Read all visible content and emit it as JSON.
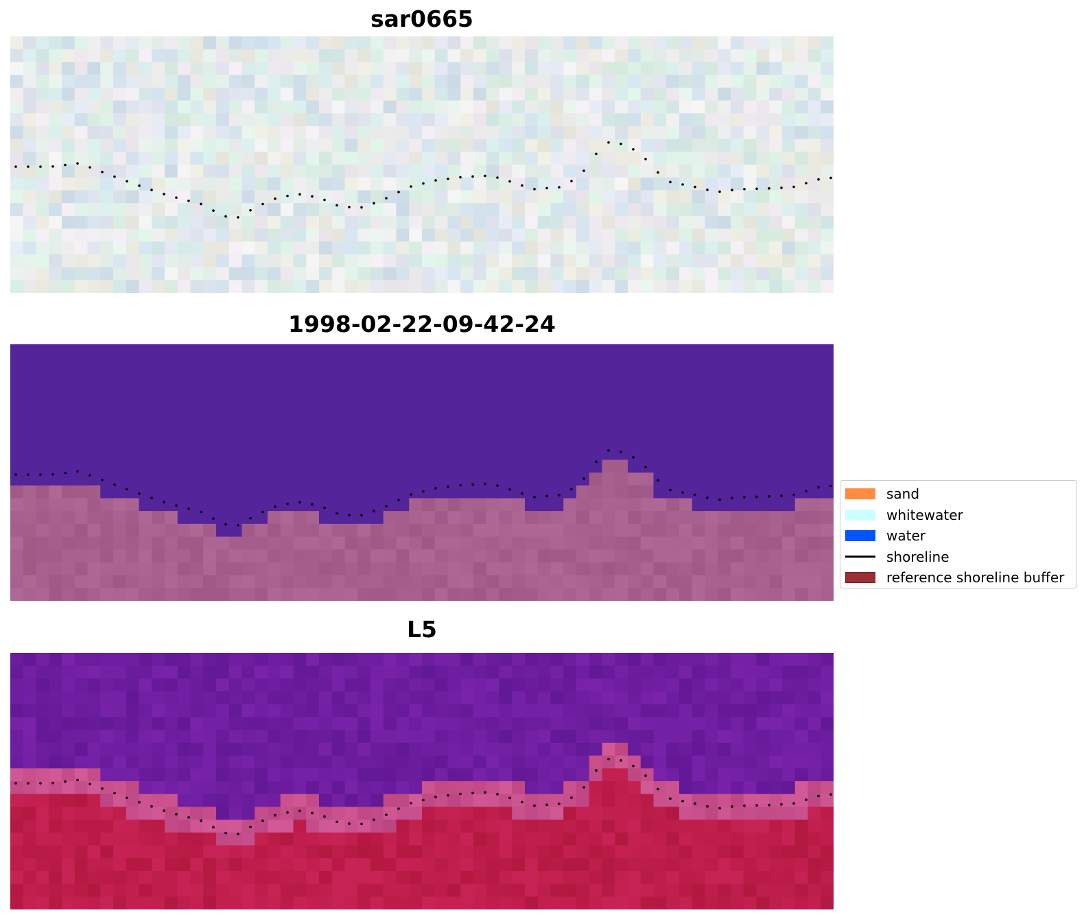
{
  "panels": [
    {
      "title": "sar0665",
      "kind": "sar"
    },
    {
      "title": "1998-02-22-09-42-24",
      "kind": "classified"
    },
    {
      "title": "L5",
      "kind": "index"
    }
  ],
  "legend": {
    "items": [
      {
        "label": "sand",
        "color": "#ff8c42",
        "type": "patch"
      },
      {
        "label": "whitewater",
        "color": "#ccffff",
        "type": "patch"
      },
      {
        "label": "water",
        "color": "#0055ff",
        "type": "patch"
      },
      {
        "label": "shoreline",
        "color": "#000000",
        "type": "line"
      },
      {
        "label": "reference shoreline buffer",
        "color": "#9b2d35",
        "type": "patch"
      }
    ]
  },
  "colors": {
    "classified_water": "#53249a",
    "classified_land": "#a8608f",
    "index_low": "#6a1fa0",
    "index_high": "#c01e48"
  }
}
